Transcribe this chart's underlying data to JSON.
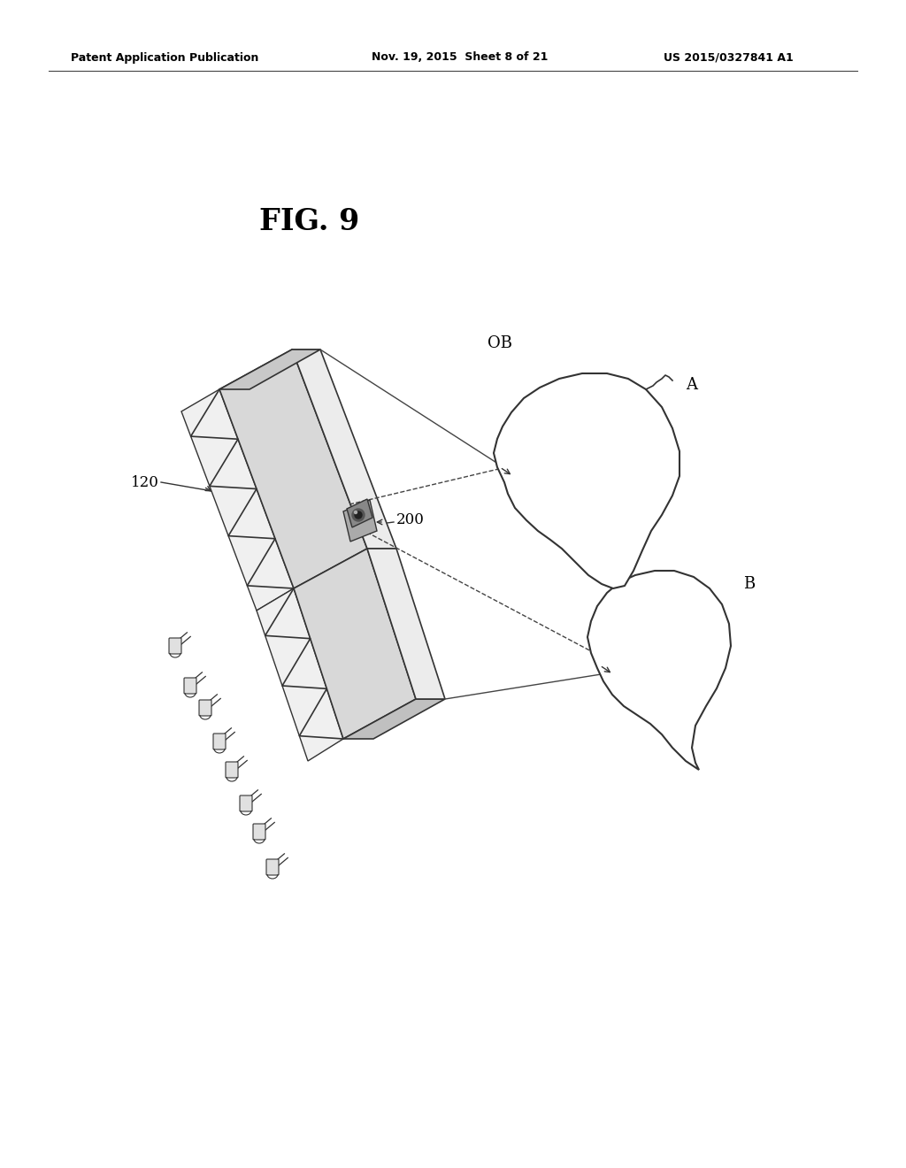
{
  "bg_color": "#ffffff",
  "text_color": "#000000",
  "line_color": "#333333",
  "header_left": "Patent Application Publication",
  "header_center": "Nov. 19, 2015  Sheet 8 of 21",
  "header_right": "US 2015/0327841 A1",
  "fig_label": "FIG. 9",
  "label_120": "120",
  "label_200": "200",
  "label_OB": "OB",
  "label_A": "A",
  "label_B": "B"
}
